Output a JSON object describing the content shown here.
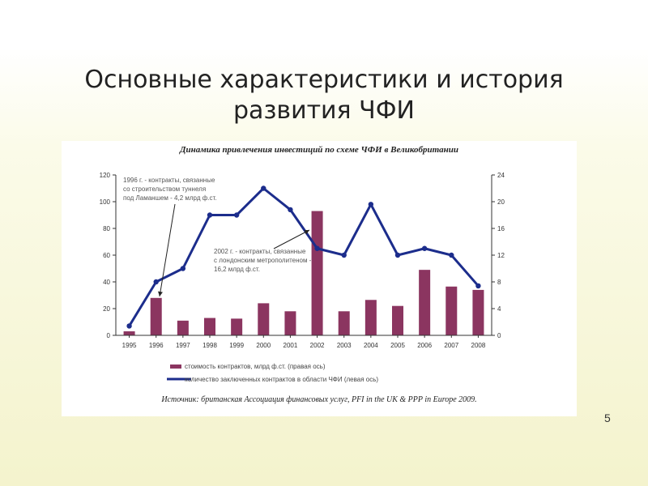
{
  "slide": {
    "title_line1": "Основные характеристики и история",
    "title_line2": "развития ЧФИ",
    "page_number": "5"
  },
  "colors": {
    "bar": "#8b3560",
    "line": "#1c2d8c",
    "text": "#222222",
    "annotation_text": "#555555"
  },
  "chart_data": {
    "type": "bar",
    "title": "Динамика привлечения инвестиций по схеме ЧФИ в Великобритании",
    "categories": [
      "1995",
      "1996",
      "1997",
      "1998",
      "1999",
      "2000",
      "2001",
      "2002",
      "2003",
      "2004",
      "2005",
      "2006",
      "2007",
      "2008"
    ],
    "left_axis": {
      "ylim": [
        0,
        120
      ],
      "ticks": [
        0,
        20,
        40,
        60,
        80,
        100,
        120
      ]
    },
    "right_axis": {
      "ylim": [
        0,
        24
      ],
      "ticks": [
        0,
        4,
        8,
        12,
        16,
        20,
        24
      ]
    },
    "series": [
      {
        "name": "стоимость контрактов, млрд ф.ст. (правая ось)",
        "type": "bar",
        "axis": "right",
        "values": [
          0.6,
          5.6,
          2.2,
          2.6,
          2.5,
          4.8,
          3.6,
          18.6,
          3.6,
          5.3,
          4.4,
          9.8,
          7.3,
          6.8
        ]
      },
      {
        "name": "количество заключенных контрактов в области ЧФИ (левая ось)",
        "type": "line",
        "axis": "left",
        "values": [
          7,
          40,
          50,
          90,
          90,
          110,
          94,
          65,
          60,
          98,
          60,
          65,
          60,
          37
        ]
      }
    ],
    "annotations": [
      {
        "lines": [
          "1996 г. - контракты, связанные",
          "со строительством туннеля",
          "под Ламаншем - 4,2 млрд ф.ст."
        ]
      },
      {
        "lines": [
          "2002 г. - контракты, связанные",
          "с лондонским метрополитеном -",
          "16,2 млрд ф.ст."
        ]
      }
    ],
    "source": "Источник: британская Ассоциация финансовых услуг, PFI in the UK & PPP in Europe 2009."
  }
}
